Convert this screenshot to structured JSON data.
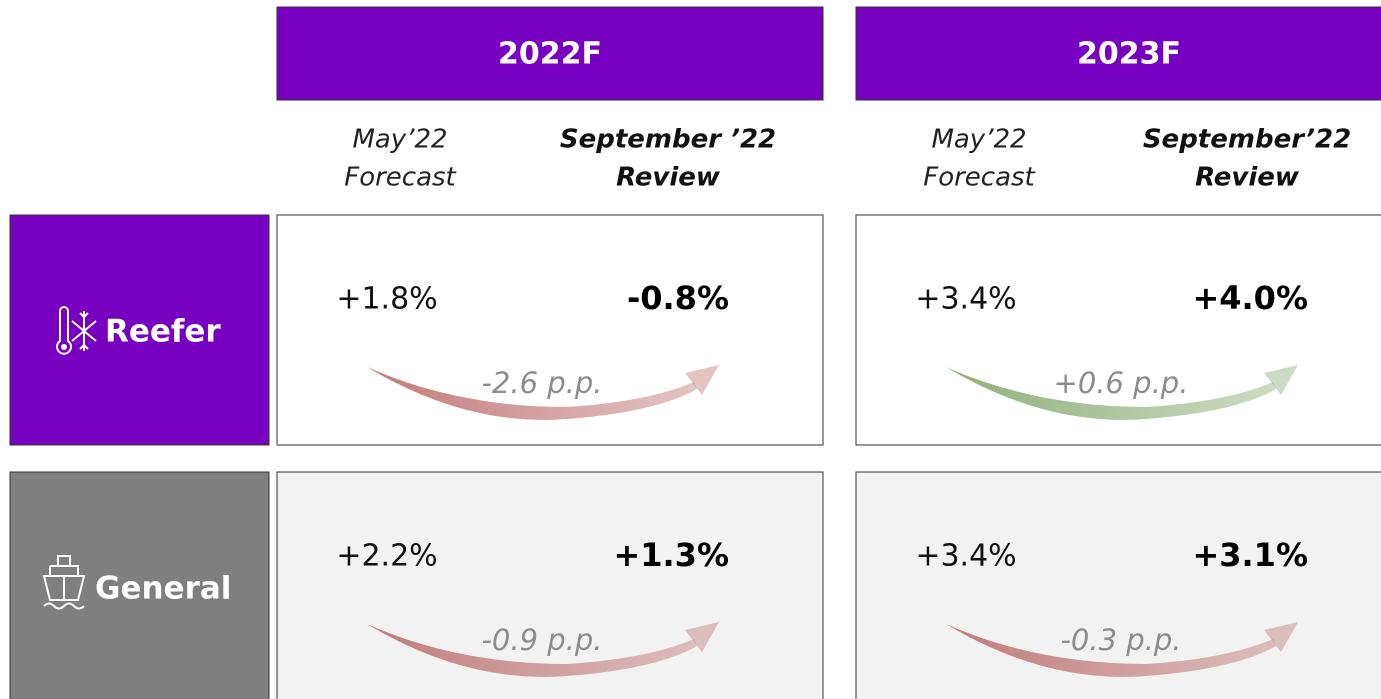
{
  "columns": [
    {
      "title": "2022F",
      "forecast_label": [
        "May’22",
        "Forecast"
      ],
      "review_label": [
        "September ’22",
        "Review"
      ]
    },
    {
      "title": "2023F",
      "forecast_label": [
        "May’22",
        "Forecast"
      ],
      "review_label": [
        "September’22",
        "Review"
      ]
    }
  ],
  "rows": [
    {
      "name": "Reefer",
      "color": "#7800c0",
      "cell_color": "#ffffff",
      "icon": "reefer",
      "cells": [
        {
          "forecast": "+1.8%",
          "review": "-0.8%",
          "change": "-2.6 p.p.",
          "arrow_color": "#c27b7b"
        },
        {
          "forecast": "+3.4%",
          "review": "+4.0%",
          "change": "+0.6 p.p.",
          "arrow_color": "#8fb07a"
        }
      ]
    },
    {
      "name": "General",
      "color": "#7f7f7f",
      "cell_color": "#f2f2f2",
      "icon": "ship",
      "cells": [
        {
          "forecast": "+2.2%",
          "review": "+1.3%",
          "change": "-0.9 p.p.",
          "arrow_color": "#c27b7b"
        },
        {
          "forecast": "+3.4%",
          "review": "+3.1%",
          "change": "-0.3 p.p.",
          "arrow_color": "#c27b7b"
        }
      ]
    }
  ]
}
